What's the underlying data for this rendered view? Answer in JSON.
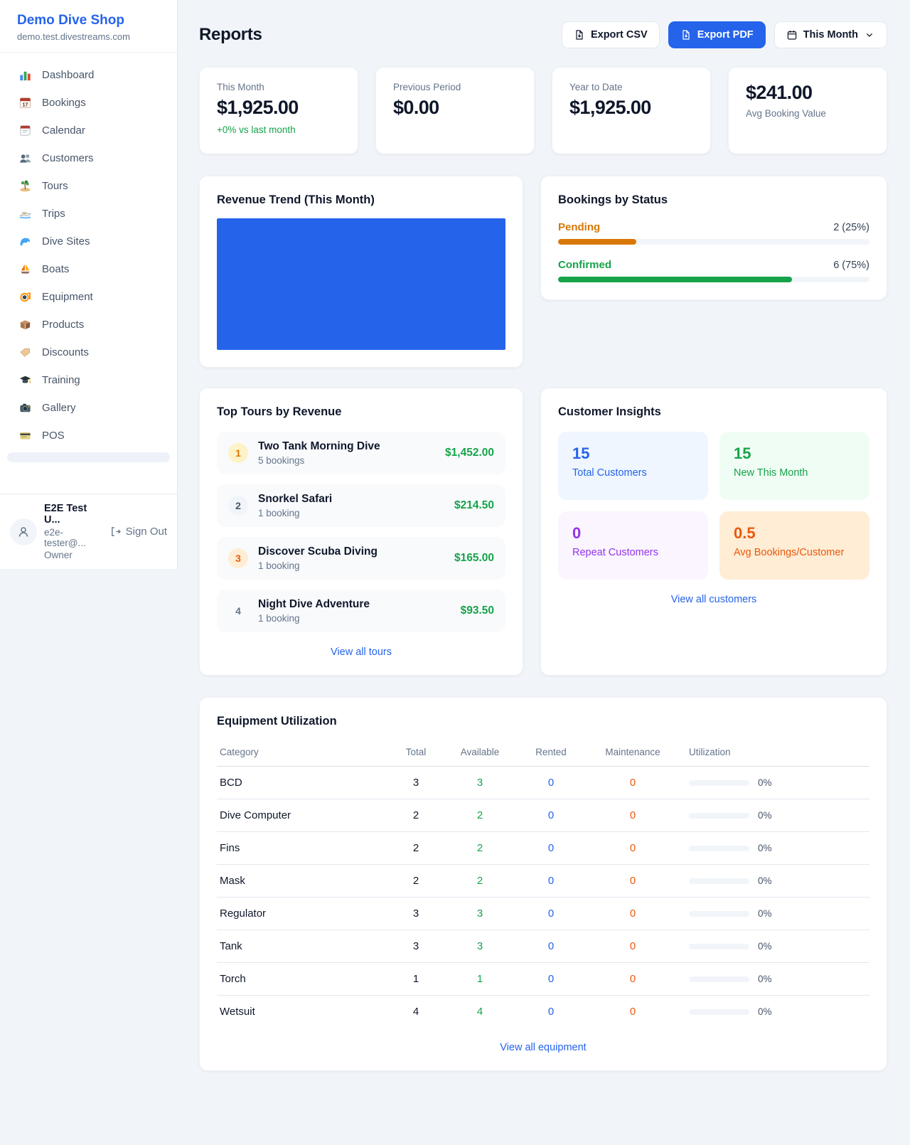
{
  "colors": {
    "accent_blue": "#2563eb",
    "success_green": "#16a34a",
    "pending_orange": "#d97706",
    "alert_orange": "#ea580c",
    "purple": "#9333ea",
    "chart_blue": "#2563eb"
  },
  "sidebar": {
    "shop_name": "Demo Dive Shop",
    "shop_domain": "demo.test.divestreams.com",
    "items": [
      {
        "icon": "bar-chart",
        "label": "Dashboard"
      },
      {
        "icon": "calendar-date",
        "label": "Bookings"
      },
      {
        "icon": "tear-off-calendar",
        "label": "Calendar"
      },
      {
        "icon": "people",
        "label": "Customers"
      },
      {
        "icon": "island",
        "label": "Tours"
      },
      {
        "icon": "speedboat",
        "label": "Trips"
      },
      {
        "icon": "wave",
        "label": "Dive Sites"
      },
      {
        "icon": "sailboat",
        "label": "Boats"
      },
      {
        "icon": "diving-mask",
        "label": "Equipment"
      },
      {
        "icon": "package",
        "label": "Products"
      },
      {
        "icon": "tag",
        "label": "Discounts"
      },
      {
        "icon": "graduation-cap",
        "label": "Training"
      },
      {
        "icon": "camera",
        "label": "Gallery"
      },
      {
        "icon": "credit-card",
        "label": "POS"
      }
    ],
    "user": {
      "name": "E2E Test U...",
      "email": "e2e-tester@...",
      "role": "Owner",
      "sign_out_label": "Sign Out"
    }
  },
  "header": {
    "title": "Reports",
    "export_csv_label": "Export CSV",
    "export_pdf_label": "Export PDF",
    "period_label": "This Month"
  },
  "stats": [
    {
      "label": "This Month",
      "value": "$1,925.00",
      "delta": "+0% vs last month"
    },
    {
      "label": "Previous Period",
      "value": "$0.00"
    },
    {
      "label": "Year to Date",
      "value": "$1,925.00"
    },
    {
      "value": "$241.00",
      "label": "Avg Booking Value"
    }
  ],
  "revenue_trend": {
    "title": "Revenue Trend (This Month)",
    "chart_data": {
      "type": "bar",
      "description": "single solid blue bar filling the entire plot area, no axes or labels visible",
      "color": "#2563eb"
    }
  },
  "bookings_by_status": {
    "title": "Bookings by Status",
    "rows": [
      {
        "label": "Pending",
        "value": "2 (25%)",
        "percent": 25,
        "color": "#d97706"
      },
      {
        "label": "Confirmed",
        "value": "6 (75%)",
        "percent": 75,
        "color": "#16a34a"
      }
    ]
  },
  "top_tours": {
    "title": "Top Tours by Revenue",
    "items": [
      {
        "rank": "1",
        "name": "Two Tank Morning Dive",
        "bookings": "5 bookings",
        "revenue": "$1,452.00",
        "badge_bg": "#fef3c7",
        "badge_color": "#d97706"
      },
      {
        "rank": "2",
        "name": "Snorkel Safari",
        "bookings": "1 booking",
        "revenue": "$214.50",
        "badge_bg": "#f1f5f9",
        "badge_color": "#475569"
      },
      {
        "rank": "3",
        "name": "Discover Scuba Diving",
        "bookings": "1 booking",
        "revenue": "$165.00",
        "badge_bg": "#ffedd5",
        "badge_color": "#ea580c"
      },
      {
        "rank": "4",
        "name": "Night Dive Adventure",
        "bookings": "1 booking",
        "revenue": "$93.50",
        "badge_bg": "transparent",
        "badge_color": "#64748b"
      }
    ],
    "view_all_label": "View all tours"
  },
  "customer_insights": {
    "title": "Customer Insights",
    "tiles": [
      {
        "value": "15",
        "label": "Total Customers",
        "bg": "#eff6ff",
        "color": "#2563eb"
      },
      {
        "value": "15",
        "label": "New This Month",
        "bg": "#f0fdf4",
        "color": "#16a34a"
      },
      {
        "value": "0",
        "label": "Repeat Customers",
        "bg": "#faf5ff",
        "color": "#9333ea"
      },
      {
        "value": "0.5",
        "label": "Avg Bookings/Customer",
        "bg": "#ffedd5",
        "color": "#ea580c"
      }
    ],
    "view_all_label": "View all customers"
  },
  "equipment": {
    "title": "Equipment Utilization",
    "columns": [
      "Category",
      "Total",
      "Available",
      "Rented",
      "Maintenance",
      "Utilization"
    ],
    "rows": [
      {
        "category": "BCD",
        "total": "3",
        "available": "3",
        "rented": "0",
        "maintenance": "0",
        "utilization": "0%",
        "utilization_percent": 0
      },
      {
        "category": "Dive Computer",
        "total": "2",
        "available": "2",
        "rented": "0",
        "maintenance": "0",
        "utilization": "0%",
        "utilization_percent": 0
      },
      {
        "category": "Fins",
        "total": "2",
        "available": "2",
        "rented": "0",
        "maintenance": "0",
        "utilization": "0%",
        "utilization_percent": 0
      },
      {
        "category": "Mask",
        "total": "2",
        "available": "2",
        "rented": "0",
        "maintenance": "0",
        "utilization": "0%",
        "utilization_percent": 0
      },
      {
        "category": "Regulator",
        "total": "3",
        "available": "3",
        "rented": "0",
        "maintenance": "0",
        "utilization": "0%",
        "utilization_percent": 0
      },
      {
        "category": "Tank",
        "total": "3",
        "available": "3",
        "rented": "0",
        "maintenance": "0",
        "utilization": "0%",
        "utilization_percent": 0
      },
      {
        "category": "Torch",
        "total": "1",
        "available": "1",
        "rented": "0",
        "maintenance": "0",
        "utilization": "0%",
        "utilization_percent": 0
      },
      {
        "category": "Wetsuit",
        "total": "4",
        "available": "4",
        "rented": "0",
        "maintenance": "0",
        "utilization": "0%",
        "utilization_percent": 0
      }
    ],
    "view_all_label": "View all equipment"
  }
}
